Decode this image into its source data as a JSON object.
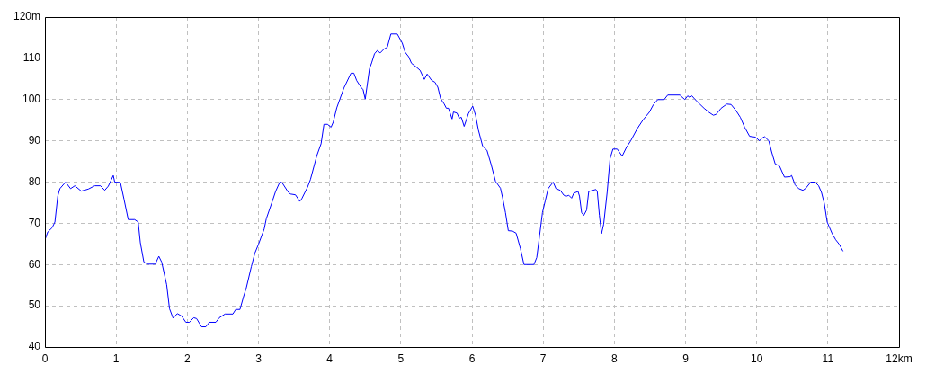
{
  "chart_data": {
    "type": "line",
    "color": "#0000ff",
    "grid": true,
    "marker": "none",
    "line_style": "solid",
    "xlim": [
      0,
      12
    ],
    "xticks": [
      0,
      1,
      2,
      3,
      4,
      5,
      6,
      7,
      8,
      9,
      10,
      11,
      {
        "value": 12,
        "label": "12km"
      }
    ],
    "ylim": [
      40,
      120
    ],
    "yticks": [
      40,
      50,
      60,
      70,
      80,
      90,
      100,
      110,
      {
        "value": 120,
        "label": "120m"
      }
    ],
    "x": [
      0,
      0.04,
      0.1,
      0.14,
      0.18,
      0.21,
      0.29,
      0.36,
      0.42,
      0.51,
      0.61,
      0.7,
      0.78,
      0.84,
      0.89,
      0.96,
      0.98,
      1.06,
      1.11,
      1.17,
      1.26,
      1.31,
      1.34,
      1.39,
      1.44,
      1.55,
      1.6,
      1.64,
      1.71,
      1.75,
      1.8,
      1.86,
      1.92,
      1.98,
      2.03,
      2.09,
      2.13,
      2.2,
      2.26,
      2.31,
      2.4,
      2.45,
      2.53,
      2.64,
      2.68,
      2.74,
      2.79,
      2.83,
      2.9,
      2.95,
      3.0,
      3.08,
      3.11,
      3.19,
      3.24,
      3.3,
      3.33,
      3.42,
      3.45,
      3.52,
      3.58,
      3.61,
      3.69,
      3.73,
      3.82,
      3.88,
      3.92,
      3.97,
      4.02,
      4.05,
      4.1,
      4.2,
      4.3,
      4.34,
      4.38,
      4.44,
      4.47,
      4.5,
      4.56,
      4.59,
      4.63,
      4.67,
      4.71,
      4.76,
      4.81,
      4.86,
      4.95,
      5.02,
      5.06,
      5.11,
      5.15,
      5.21,
      5.27,
      5.33,
      5.37,
      5.43,
      5.48,
      5.52,
      5.56,
      5.61,
      5.64,
      5.67,
      5.72,
      5.74,
      5.79,
      5.82,
      5.85,
      5.89,
      5.95,
      6.01,
      6.05,
      6.09,
      6.15,
      6.21,
      6.27,
      6.33,
      6.4,
      6.43,
      6.47,
      6.51,
      6.57,
      6.62,
      6.68,
      6.73,
      6.87,
      6.91,
      6.95,
      6.99,
      7.03,
      7.07,
      7.14,
      7.18,
      7.24,
      7.29,
      7.33,
      7.36,
      7.4,
      7.43,
      7.49,
      7.51,
      7.54,
      7.57,
      7.61,
      7.64,
      7.74,
      7.76,
      7.79,
      7.82,
      7.85,
      7.9,
      7.94,
      7.98,
      8.04,
      8.11,
      8.17,
      8.23,
      8.32,
      8.4,
      8.49,
      8.55,
      8.61,
      8.7,
      8.75,
      8.92,
      8.99,
      9.03,
      9.06,
      9.09,
      9.13,
      9.2,
      9.26,
      9.33,
      9.39,
      9.43,
      9.5,
      9.58,
      9.64,
      9.71,
      9.77,
      9.83,
      9.9,
      9.98,
      10.04,
      10.07,
      10.11,
      10.17,
      10.21,
      10.26,
      10.32,
      10.39,
      10.47,
      10.49,
      10.54,
      10.59,
      10.65,
      10.69,
      10.76,
      10.82,
      10.87,
      10.91,
      10.95,
      10.99,
      11.06,
      11.11,
      11.16,
      11.21
    ],
    "values": [
      66.0,
      67.9,
      68.9,
      70.3,
      76.6,
      78.4,
      80.0,
      78.4,
      79.1,
      77.8,
      78.3,
      79.1,
      79.1,
      78.0,
      79.0,
      81.6,
      80.0,
      79.9,
      75.9,
      70.9,
      70.9,
      70.3,
      65.3,
      60.6,
      60.1,
      60.1,
      62.0,
      60.6,
      55.1,
      49.3,
      47.0,
      48.1,
      47.5,
      46.0,
      46.0,
      47.1,
      46.9,
      44.9,
      44.9,
      46.0,
      46.0,
      47.1,
      48.0,
      48.0,
      49.1,
      49.1,
      52.2,
      54.4,
      59.5,
      62.8,
      64.9,
      68.6,
      71.1,
      75.1,
      77.7,
      80.0,
      79.9,
      77.5,
      77.1,
      76.9,
      75.3,
      76.0,
      78.8,
      80.6,
      86.4,
      89.3,
      94.0,
      94.0,
      93.3,
      94.5,
      98.0,
      102.8,
      106.4,
      106.4,
      104.6,
      103.0,
      102.4,
      100.1,
      107.5,
      108.9,
      111.1,
      111.9,
      111.3,
      112.2,
      112.7,
      115.9,
      115.9,
      113.7,
      111.5,
      110.4,
      108.8,
      108.0,
      107.1,
      104.9,
      106.2,
      104.7,
      104.2,
      103.0,
      100.2,
      98.9,
      97.9,
      97.9,
      95.3,
      97.0,
      96.7,
      95.5,
      95.7,
      93.5,
      96.6,
      98.4,
      96.2,
      92.6,
      88.7,
      87.7,
      84.2,
      80.2,
      78.5,
      76.2,
      72.6,
      68.2,
      68.1,
      67.6,
      63.9,
      60.0,
      60.0,
      61.7,
      67.1,
      72.6,
      75.5,
      78.4,
      80.0,
      78.4,
      78.0,
      76.8,
      76.6,
      76.8,
      76.1,
      77.3,
      77.7,
      76.6,
      72.6,
      71.9,
      73.2,
      77.7,
      78.2,
      77.7,
      71.9,
      67.5,
      69.8,
      77.7,
      85.7,
      88.0,
      88.0,
      86.3,
      88.4,
      90.0,
      92.9,
      95.0,
      96.9,
      98.8,
      100.0,
      100.0,
      101.1,
      101.1,
      100.0,
      100.9,
      100.5,
      100.9,
      100.1,
      98.9,
      97.9,
      96.9,
      96.2,
      96.4,
      97.9,
      98.9,
      98.8,
      97.3,
      95.7,
      93.3,
      91.1,
      90.9,
      90.0,
      90.6,
      91.0,
      90.0,
      87.3,
      84.4,
      83.9,
      81.2,
      81.3,
      81.6,
      79.3,
      78.4,
      78.0,
      78.5,
      80.0,
      80.0,
      79.1,
      77.5,
      74.8,
      70.3,
      67.5,
      66.0,
      64.9,
      63.3
    ]
  }
}
